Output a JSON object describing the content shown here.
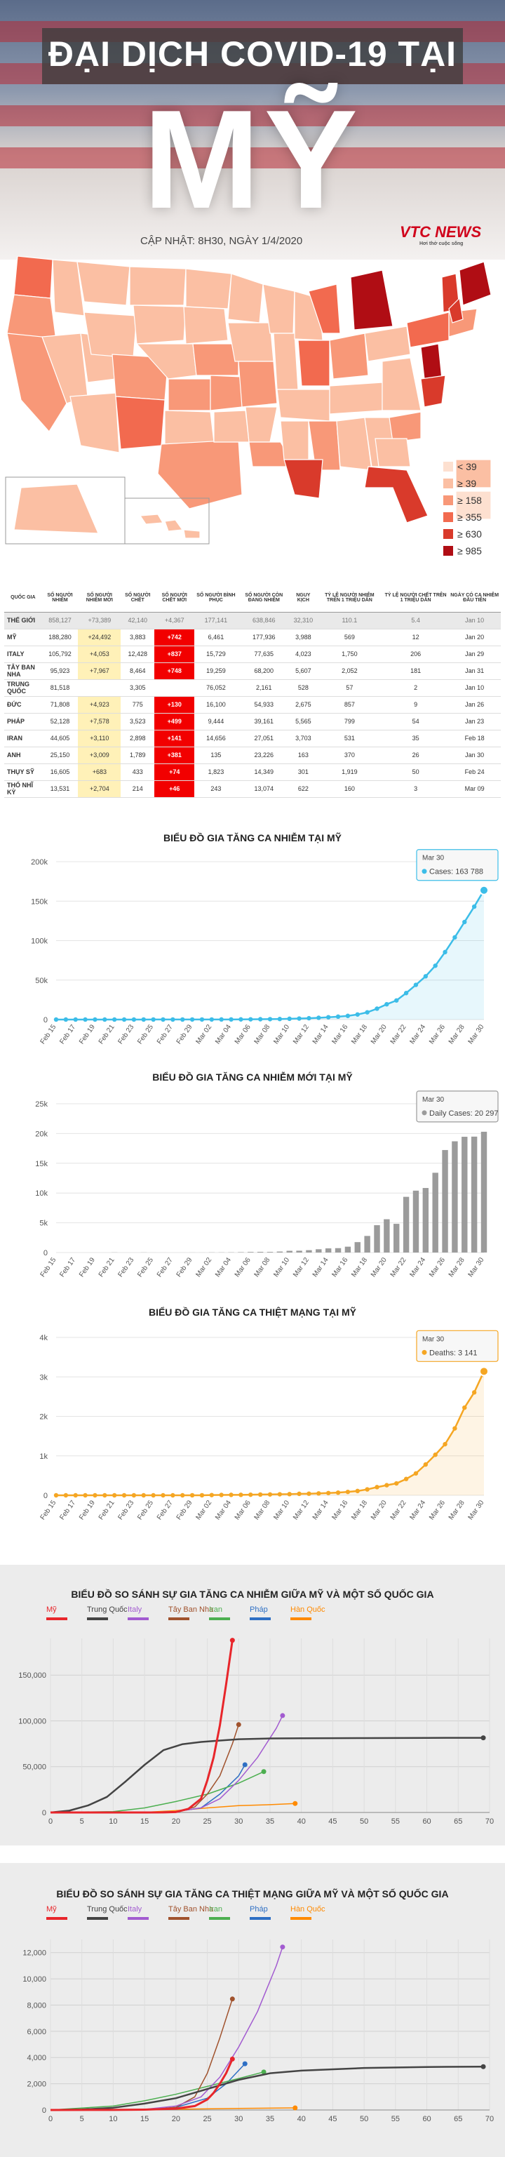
{
  "header": {
    "title": "ĐẠI DỊCH COVID-19 TẠI",
    "country": "MỸ",
    "updated": "CẬP NHẬT: 8H30, NGÀY 1/4/2020",
    "logo": "VTC NEWS",
    "logo_tagline": "Hơi thở cuộc sống"
  },
  "map": {
    "legend": [
      {
        "label": "< 39",
        "color": "#fde0d0"
      },
      {
        "label": "≥ 39",
        "color": "#fbbfa3"
      },
      {
        "label": "≥ 158",
        "color": "#f89878"
      },
      {
        "label": "≥ 355",
        "color": "#f26a4f"
      },
      {
        "label": "≥ 630",
        "color": "#d93a2b"
      },
      {
        "label": "≥ 985",
        "color": "#b00d14"
      }
    ]
  },
  "table": {
    "headers": [
      "QUỐC GIA",
      "SỐ NGƯỜI NHIỄM",
      "SỐ NGƯỜI NHIỄM MỚI",
      "SỐ NGƯỜI CHẾT",
      "SỐ NGƯỜI CHẾT MỚI",
      "SỐ NGƯỜI BÌNH PHỤC",
      "SỐ NGƯỜI CÒN ĐANG NHIỄM",
      "NGUY KỊCH",
      "TỶ LỆ NGƯỜI NHIỄM TRÊN 1 TRIỆU DÂN",
      "TỶ LỆ NGƯỜI CHẾT TRÊN 1 TRIỆU DÂN",
      "NGÀY CÓ CA NHIỄM ĐẦU TIÊN"
    ],
    "rows": [
      {
        "cells": [
          "THẾ GIỚI",
          "858,127",
          "+73,389",
          "42,140",
          "+4,367",
          "177,141",
          "638,846",
          "32,310",
          "110.1",
          "5.4",
          "Jan 10"
        ],
        "world": true
      },
      {
        "cells": [
          "MỸ",
          "188,280",
          "+24,492",
          "3,883",
          "+742",
          "6,461",
          "177,936",
          "3,988",
          "569",
          "12",
          "Jan 20"
        ]
      },
      {
        "cells": [
          "ITALY",
          "105,792",
          "+4,053",
          "12,428",
          "+837",
          "15,729",
          "77,635",
          "4,023",
          "1,750",
          "206",
          "Jan 29"
        ]
      },
      {
        "cells": [
          "TÂY BAN NHA",
          "95,923",
          "+7,967",
          "8,464",
          "+748",
          "19,259",
          "68,200",
          "5,607",
          "2,052",
          "181",
          "Jan 31"
        ]
      },
      {
        "cells": [
          "TRUNG QUỐC",
          "81,518",
          "",
          "3,305",
          "",
          "76,052",
          "2,161",
          "528",
          "57",
          "2",
          "Jan 10"
        ]
      },
      {
        "cells": [
          "ĐỨC",
          "71,808",
          "+4,923",
          "775",
          "+130",
          "16,100",
          "54,933",
          "2,675",
          "857",
          "9",
          "Jan 26"
        ]
      },
      {
        "cells": [
          "PHÁP",
          "52,128",
          "+7,578",
          "3,523",
          "+499",
          "9,444",
          "39,161",
          "5,565",
          "799",
          "54",
          "Jan 23"
        ]
      },
      {
        "cells": [
          "IRAN",
          "44,605",
          "+3,110",
          "2,898",
          "+141",
          "14,656",
          "27,051",
          "3,703",
          "531",
          "35",
          "Feb 18"
        ]
      },
      {
        "cells": [
          "ANH",
          "25,150",
          "+3,009",
          "1,789",
          "+381",
          "135",
          "23,226",
          "163",
          "370",
          "26",
          "Jan 30"
        ]
      },
      {
        "cells": [
          "THỤY SỸ",
          "16,605",
          "+683",
          "433",
          "+74",
          "1,823",
          "14,349",
          "301",
          "1,919",
          "50",
          "Feb 24"
        ]
      },
      {
        "cells": [
          "THỔ NHĨ KỲ",
          "13,531",
          "+2,704",
          "214",
          "+46",
          "243",
          "13,074",
          "622",
          "160",
          "3",
          "Mar 09"
        ]
      }
    ]
  },
  "chart_data": [
    {
      "type": "area",
      "title": "BIỂU ĐỒ GIA TĂNG CA NHIỄM TẠI MỸ",
      "color": "#3cbde8",
      "x": [
        "Feb 15",
        "Feb 16",
        "Feb 17",
        "Feb 18",
        "Feb 19",
        "Feb 20",
        "Feb 21",
        "Feb 22",
        "Feb 23",
        "Feb 24",
        "Feb 25",
        "Feb 26",
        "Feb 27",
        "Feb 28",
        "Feb 29",
        "Mar 01",
        "Mar 02",
        "Mar 03",
        "Mar 04",
        "Mar 05",
        "Mar 06",
        "Mar 07",
        "Mar 08",
        "Mar 09",
        "Mar 10",
        "Mar 11",
        "Mar 12",
        "Mar 13",
        "Mar 14",
        "Mar 15",
        "Mar 16",
        "Mar 17",
        "Mar 18",
        "Mar 19",
        "Mar 20",
        "Mar 21",
        "Mar 22",
        "Mar 23",
        "Mar 24",
        "Mar 25",
        "Mar 26",
        "Mar 27",
        "Mar 28",
        "Mar 29",
        "Mar 30"
      ],
      "tick_labels": [
        "Feb 15",
        "Feb 17",
        "Feb 19",
        "Feb 21",
        "Feb 23",
        "Feb 25",
        "Feb 27",
        "Feb 29",
        "Mar 02",
        "Mar 04",
        "Mar 06",
        "Mar 08",
        "Mar 10",
        "Mar 12",
        "Mar 14",
        "Mar 16",
        "Mar 18",
        "Mar 20",
        "Mar 22",
        "Mar 24",
        "Mar 26",
        "Mar 28",
        "Mar 30"
      ],
      "values": [
        15,
        15,
        15,
        15,
        15,
        15,
        35,
        35,
        35,
        53,
        57,
        60,
        60,
        62,
        70,
        75,
        100,
        124,
        158,
        221,
        319,
        435,
        541,
        704,
        994,
        1301,
        1697,
        2247,
        2943,
        3680,
        4663,
        6411,
        9197,
        13789,
        19383,
        24207,
        33566,
        43963,
        54808,
        68211,
        85435,
        104126,
        123578,
        143055,
        163788
      ],
      "ylim": [
        0,
        200000
      ],
      "yticks": [
        0,
        50000,
        100000,
        150000,
        200000
      ],
      "ytick_labels": [
        "0",
        "50k",
        "100k",
        "150k",
        "200k"
      ],
      "tooltip": {
        "date": "Mar 30",
        "label": "Cases:",
        "value": "163 788"
      }
    },
    {
      "type": "bar",
      "title": "BIỂU ĐỒ GIA TĂNG CA NHIỄM MỚI TẠI MỸ",
      "color": "#9b9b9b",
      "x": [
        "Feb 15",
        "Feb 16",
        "Feb 17",
        "Feb 18",
        "Feb 19",
        "Feb 20",
        "Feb 21",
        "Feb 22",
        "Feb 23",
        "Feb 24",
        "Feb 25",
        "Feb 26",
        "Feb 27",
        "Feb 28",
        "Feb 29",
        "Mar 01",
        "Mar 02",
        "Mar 03",
        "Mar 04",
        "Mar 05",
        "Mar 06",
        "Mar 07",
        "Mar 08",
        "Mar 09",
        "Mar 10",
        "Mar 11",
        "Mar 12",
        "Mar 13",
        "Mar 14",
        "Mar 15",
        "Mar 16",
        "Mar 17",
        "Mar 18",
        "Mar 19",
        "Mar 20",
        "Mar 21",
        "Mar 22",
        "Mar 23",
        "Mar 24",
        "Mar 25",
        "Mar 26",
        "Mar 27",
        "Mar 28",
        "Mar 29",
        "Mar 30"
      ],
      "tick_labels": [
        "Feb 15",
        "Feb 17",
        "Feb 19",
        "Feb 21",
        "Feb 23",
        "Feb 25",
        "Feb 27",
        "Feb 29",
        "Mar 02",
        "Mar 04",
        "Mar 06",
        "Mar 08",
        "Mar 10",
        "Mar 12",
        "Mar 14",
        "Mar 16",
        "Mar 18",
        "Mar 20",
        "Mar 22",
        "Mar 24",
        "Mar 26",
        "Mar 28",
        "Mar 30"
      ],
      "values": [
        0,
        0,
        0,
        0,
        0,
        0,
        20,
        0,
        0,
        18,
        4,
        3,
        0,
        2,
        8,
        5,
        25,
        24,
        34,
        63,
        98,
        116,
        106,
        163,
        290,
        307,
        396,
        550,
        696,
        737,
        983,
        1748,
        2786,
        4592,
        5594,
        4824,
        9359,
        10397,
        10845,
        13403,
        17224,
        18691,
        19452,
        19477,
        20297
      ],
      "ylim": [
        0,
        25000
      ],
      "yticks": [
        0,
        5000,
        10000,
        15000,
        20000,
        25000
      ],
      "ytick_labels": [
        "0",
        "5k",
        "10k",
        "15k",
        "20k",
        "25k"
      ],
      "tooltip": {
        "date": "Mar 30",
        "label": "Daily Cases:",
        "value": "20 297"
      }
    },
    {
      "type": "area",
      "title": "BIỂU ĐỒ GIA TĂNG CA THIỆT MẠNG TẠI MỸ",
      "color": "#f5a623",
      "x": [
        "Feb 15",
        "Feb 16",
        "Feb 17",
        "Feb 18",
        "Feb 19",
        "Feb 20",
        "Feb 21",
        "Feb 22",
        "Feb 23",
        "Feb 24",
        "Feb 25",
        "Feb 26",
        "Feb 27",
        "Feb 28",
        "Feb 29",
        "Mar 01",
        "Mar 02",
        "Mar 03",
        "Mar 04",
        "Mar 05",
        "Mar 06",
        "Mar 07",
        "Mar 08",
        "Mar 09",
        "Mar 10",
        "Mar 11",
        "Mar 12",
        "Mar 13",
        "Mar 14",
        "Mar 15",
        "Mar 16",
        "Mar 17",
        "Mar 18",
        "Mar 19",
        "Mar 20",
        "Mar 21",
        "Mar 22",
        "Mar 23",
        "Mar 24",
        "Mar 25",
        "Mar 26",
        "Mar 27",
        "Mar 28",
        "Mar 29",
        "Mar 30"
      ],
      "tick_labels": [
        "Feb 15",
        "Feb 17",
        "Feb 19",
        "Feb 21",
        "Feb 23",
        "Feb 25",
        "Feb 27",
        "Feb 29",
        "Mar 02",
        "Mar 04",
        "Mar 06",
        "Mar 08",
        "Mar 10",
        "Mar 12",
        "Mar 14",
        "Mar 16",
        "Mar 18",
        "Mar 20",
        "Mar 22",
        "Mar 24",
        "Mar 26",
        "Mar 28",
        "Mar 30"
      ],
      "values": [
        0,
        0,
        0,
        0,
        0,
        0,
        0,
        0,
        0,
        0,
        0,
        0,
        0,
        0,
        1,
        1,
        6,
        9,
        11,
        12,
        15,
        19,
        22,
        26,
        30,
        38,
        41,
        48,
        57,
        68,
        86,
        109,
        150,
        207,
        256,
        302,
        414,
        555,
        780,
        1027,
        1295,
        1695,
        2221,
        2607,
        3141
      ],
      "ylim": [
        0,
        4000
      ],
      "yticks": [
        0,
        1000,
        2000,
        3000,
        4000
      ],
      "ytick_labels": [
        "0",
        "1k",
        "2k",
        "3k",
        "4k"
      ],
      "tooltip": {
        "date": "Mar 30",
        "label": "Deaths:",
        "value": "3 141"
      }
    },
    {
      "type": "line",
      "title": "BIỂU ĐỒ SO SÁNH SỰ GIA TĂNG CA NHIỄM GIỮA MỸ VÀ MỘT SỐ QUỐC GIA",
      "xlim": [
        0,
        70
      ],
      "xticks": [
        0,
        5,
        10,
        15,
        20,
        25,
        30,
        35,
        40,
        45,
        50,
        55,
        60,
        65,
        70
      ],
      "ylim": [
        0,
        190000
      ],
      "yticks": [
        0,
        50000,
        100000,
        150000
      ],
      "ytick_labels": [
        "0",
        "50,000",
        "100,000",
        "150,000"
      ],
      "series": [
        {
          "name": "Mỹ",
          "color": "#e8262b",
          "width": 3,
          "x": [
            0,
            5,
            10,
            15,
            18,
            20,
            22,
            24,
            25,
            26,
            27,
            28,
            29
          ],
          "y": [
            1,
            2,
            5,
            15,
            60,
            500,
            4000,
            15000,
            35000,
            60000,
            95000,
            140000,
            188000
          ]
        },
        {
          "name": "Trung Quốc",
          "color": "#444444",
          "width": 2.5,
          "x": [
            0,
            3,
            6,
            9,
            12,
            15,
            18,
            21,
            24,
            27,
            30,
            35,
            40,
            45,
            50,
            55,
            60,
            65,
            69
          ],
          "y": [
            45,
            2000,
            7700,
            17000,
            34000,
            52000,
            68000,
            74500,
            77000,
            78500,
            80000,
            80800,
            81000,
            81100,
            81200,
            81300,
            81400,
            81500,
            81518
          ]
        },
        {
          "name": "Italy",
          "color": "#a25bd0",
          "width": 1.5,
          "x": [
            0,
            10,
            15,
            20,
            24,
            27,
            30,
            33,
            36,
            37
          ],
          "y": [
            2,
            3,
            200,
            1000,
            5000,
            15000,
            35000,
            60000,
            92000,
            105792
          ]
        },
        {
          "name": "Tây Ban Nha",
          "color": "#a0522d",
          "width": 1.5,
          "x": [
            0,
            10,
            15,
            20,
            23,
            25,
            27,
            29,
            30
          ],
          "y": [
            1,
            2,
            50,
            500,
            6000,
            20000,
            40000,
            75000,
            95923
          ]
        },
        {
          "name": "Iran",
          "color": "#4caf50",
          "width": 1.5,
          "x": [
            0,
            10,
            15,
            20,
            25,
            30,
            34
          ],
          "y": [
            2,
            1000,
            5000,
            12000,
            20000,
            32000,
            44605
          ]
        },
        {
          "name": "Pháp",
          "color": "#2e6fc4",
          "width": 1.5,
          "x": [
            0,
            10,
            15,
            20,
            24,
            27,
            30,
            31
          ],
          "y": [
            3,
            12,
            100,
            1000,
            5000,
            20000,
            40000,
            52128
          ]
        },
        {
          "name": "Hàn Quốc",
          "color": "#ff8a00",
          "width": 1.5,
          "x": [
            0,
            10,
            15,
            20,
            25,
            30,
            35,
            39
          ],
          "y": [
            1,
            30,
            200,
            2000,
            5000,
            7500,
            8500,
            9800
          ]
        }
      ]
    },
    {
      "type": "line",
      "title": "BIỂU ĐỒ SO SÁNH SỰ GIA TĂNG CA THIỆT MẠNG GIỮA MỸ VÀ MỘT SỐ QUỐC GIA",
      "xlim": [
        0,
        70
      ],
      "xticks": [
        0,
        5,
        10,
        15,
        20,
        25,
        30,
        35,
        40,
        45,
        50,
        55,
        60,
        65,
        70
      ],
      "ylim": [
        0,
        13000
      ],
      "yticks": [
        0,
        2000,
        4000,
        6000,
        8000,
        10000,
        12000
      ],
      "ytick_labels": [
        "0",
        "2,000",
        "4,000",
        "6,000",
        "8,000",
        "10,000",
        "12,000"
      ],
      "series": [
        {
          "name": "Mỹ",
          "color": "#e8262b",
          "width": 3,
          "x": [
            0,
            10,
            15,
            20,
            23,
            25,
            26,
            27,
            28,
            29
          ],
          "y": [
            0,
            10,
            30,
            100,
            300,
            800,
            1300,
            2000,
            2800,
            3883
          ]
        },
        {
          "name": "Trung Quốc",
          "color": "#444444",
          "width": 2.5,
          "x": [
            0,
            5,
            10,
            15,
            20,
            25,
            30,
            35,
            40,
            50,
            60,
            69
          ],
          "y": [
            1,
            40,
            170,
            490,
            900,
            1600,
            2300,
            2800,
            3000,
            3200,
            3280,
            3305
          ]
        },
        {
          "name": "Italy",
          "color": "#a25bd0",
          "width": 1.5,
          "x": [
            0,
            10,
            15,
            20,
            24,
            27,
            30,
            33,
            36,
            37
          ],
          "y": [
            0,
            10,
            50,
            300,
            1000,
            2500,
            4800,
            7500,
            11000,
            12428
          ]
        },
        {
          "name": "Tây Ban Nha",
          "color": "#a0522d",
          "width": 1.5,
          "x": [
            0,
            10,
            15,
            20,
            23,
            25,
            27,
            29
          ],
          "y": [
            0,
            1,
            20,
            200,
            1000,
            2800,
            5500,
            8464
          ]
        },
        {
          "name": "Iran",
          "color": "#4caf50",
          "width": 1.5,
          "x": [
            0,
            10,
            15,
            20,
            25,
            30,
            34
          ],
          "y": [
            0,
            300,
            700,
            1200,
            1800,
            2400,
            2898
          ]
        },
        {
          "name": "Pháp",
          "color": "#2e6fc4",
          "width": 1.5,
          "x": [
            0,
            10,
            15,
            20,
            25,
            28,
            31
          ],
          "y": [
            0,
            1,
            10,
            200,
            900,
            2000,
            3523
          ]
        },
        {
          "name": "Hàn Quốc",
          "color": "#ff8a00",
          "width": 1.5,
          "x": [
            0,
            10,
            20,
            30,
            39
          ],
          "y": [
            0,
            10,
            60,
            120,
            162
          ]
        }
      ]
    }
  ]
}
